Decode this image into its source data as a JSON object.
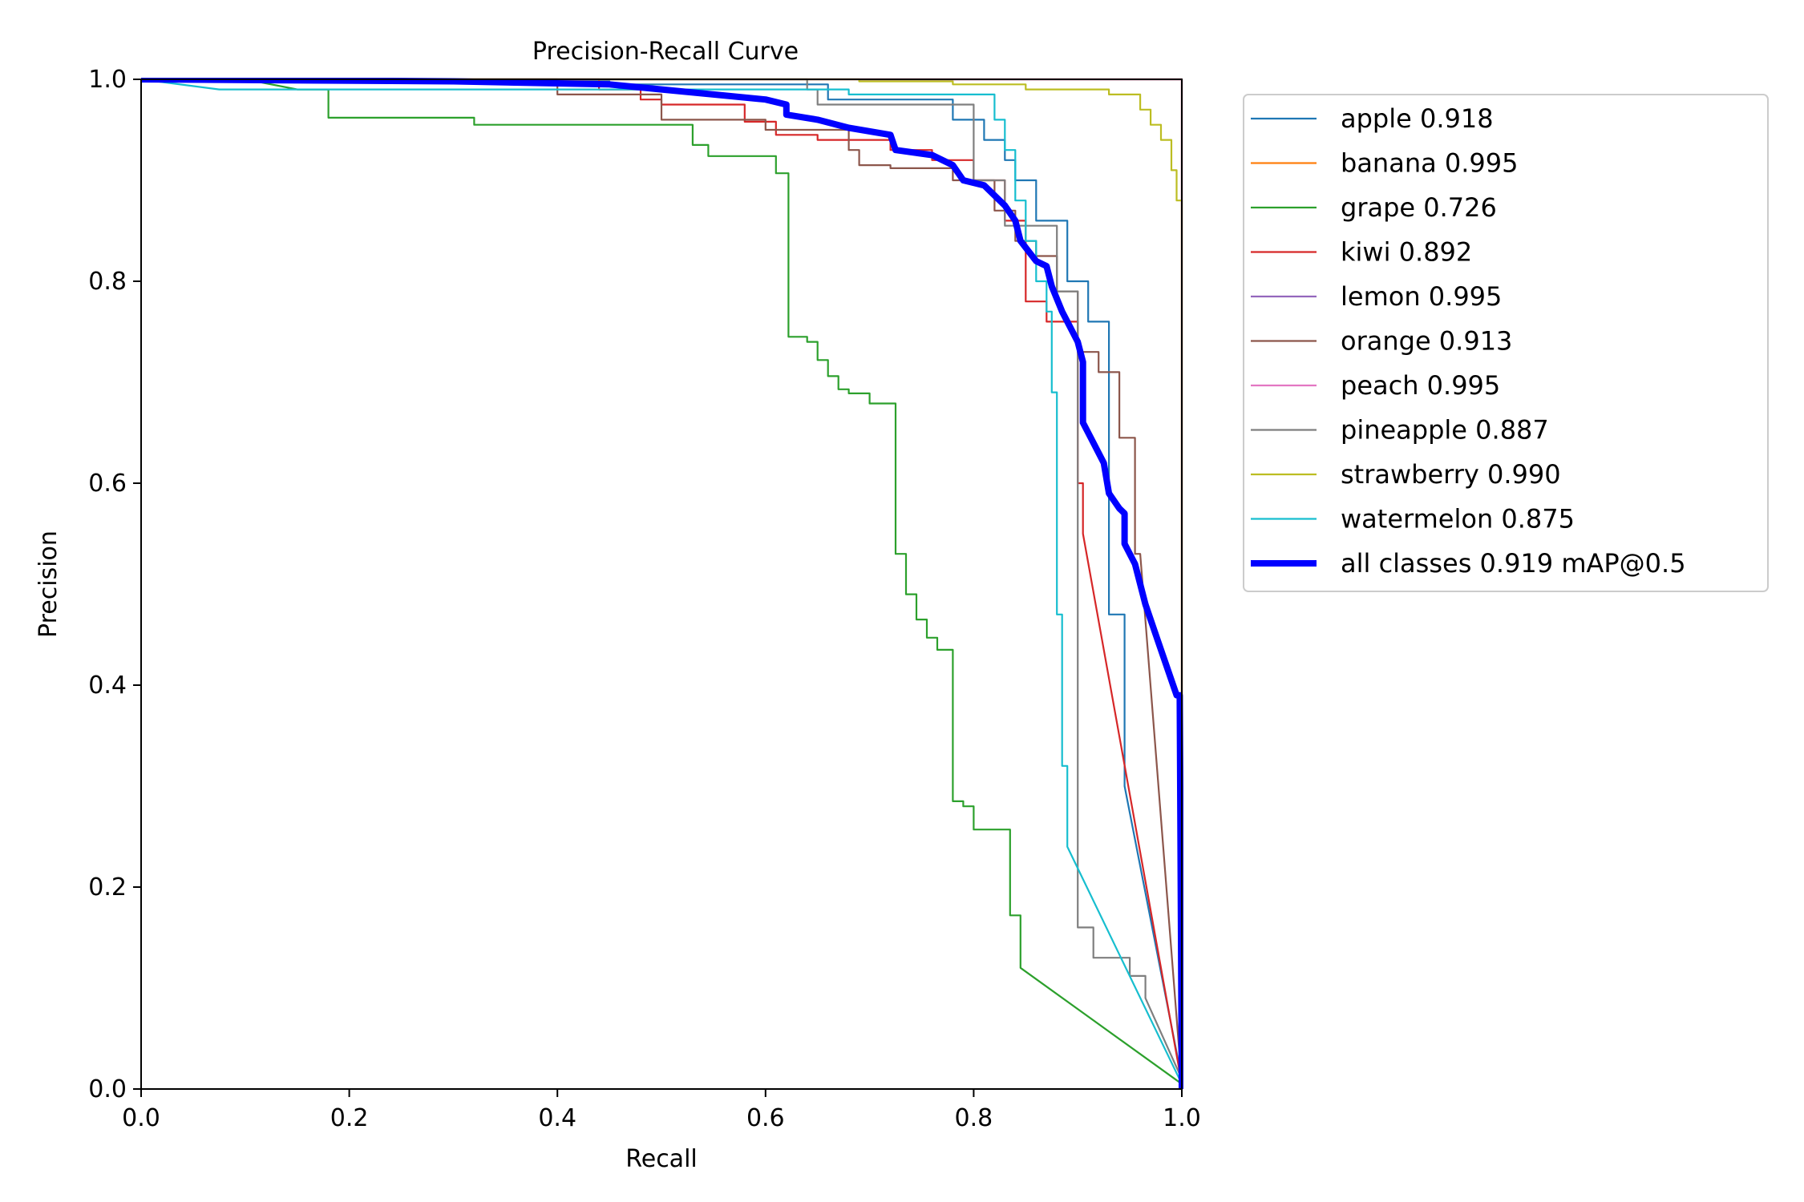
{
  "chart_data": {
    "type": "line",
    "title": "Precision-Recall Curve",
    "xlabel": "Recall",
    "ylabel": "Precision",
    "xlim": [
      0,
      1
    ],
    "ylim": [
      0,
      1
    ],
    "xticks": [
      "0.0",
      "0.2",
      "0.4",
      "0.6",
      "0.8",
      "1.0"
    ],
    "yticks": [
      "0.0",
      "0.2",
      "0.4",
      "0.6",
      "0.8",
      "1.0"
    ],
    "grid": false,
    "legend_position": "outside-top-right",
    "series": [
      {
        "name": "apple 0.918",
        "color": "#1f77b4",
        "width": "thin",
        "points": [
          [
            0,
            1
          ],
          [
            0.3,
            1
          ],
          [
            0.3,
            0.998
          ],
          [
            0.45,
            0.998
          ],
          [
            0.45,
            0.995
          ],
          [
            0.66,
            0.995
          ],
          [
            0.66,
            0.98
          ],
          [
            0.78,
            0.98
          ],
          [
            0.78,
            0.96
          ],
          [
            0.81,
            0.96
          ],
          [
            0.81,
            0.94
          ],
          [
            0.83,
            0.94
          ],
          [
            0.83,
            0.92
          ],
          [
            0.84,
            0.92
          ],
          [
            0.84,
            0.9
          ],
          [
            0.86,
            0.9
          ],
          [
            0.86,
            0.86
          ],
          [
            0.89,
            0.86
          ],
          [
            0.89,
            0.8
          ],
          [
            0.91,
            0.8
          ],
          [
            0.91,
            0.76
          ],
          [
            0.93,
            0.76
          ],
          [
            0.93,
            0.47
          ],
          [
            0.945,
            0.47
          ],
          [
            0.945,
            0.3
          ],
          [
            1,
            0.01
          ]
        ]
      },
      {
        "name": "banana 0.995",
        "color": "#ff7f0e",
        "width": "thin",
        "points": [
          [
            0,
            1
          ],
          [
            0.995,
            1
          ],
          [
            1,
            1
          ],
          [
            1,
            0
          ]
        ]
      },
      {
        "name": "grape 0.726",
        "color": "#2ca02c",
        "width": "thin",
        "points": [
          [
            0,
            1
          ],
          [
            0.1,
            1
          ],
          [
            0.15,
            0.99
          ],
          [
            0.18,
            0.99
          ],
          [
            0.18,
            0.962
          ],
          [
            0.32,
            0.962
          ],
          [
            0.32,
            0.955
          ],
          [
            0.53,
            0.955
          ],
          [
            0.53,
            0.935
          ],
          [
            0.545,
            0.935
          ],
          [
            0.545,
            0.924
          ],
          [
            0.61,
            0.924
          ],
          [
            0.61,
            0.907
          ],
          [
            0.622,
            0.907
          ],
          [
            0.622,
            0.745
          ],
          [
            0.64,
            0.745
          ],
          [
            0.64,
            0.74
          ],
          [
            0.65,
            0.74
          ],
          [
            0.65,
            0.722
          ],
          [
            0.66,
            0.722
          ],
          [
            0.66,
            0.706
          ],
          [
            0.67,
            0.706
          ],
          [
            0.67,
            0.693
          ],
          [
            0.68,
            0.693
          ],
          [
            0.68,
            0.689
          ],
          [
            0.7,
            0.689
          ],
          [
            0.7,
            0.679
          ],
          [
            0.725,
            0.679
          ],
          [
            0.725,
            0.53
          ],
          [
            0.735,
            0.53
          ],
          [
            0.735,
            0.49
          ],
          [
            0.745,
            0.49
          ],
          [
            0.745,
            0.465
          ],
          [
            0.755,
            0.465
          ],
          [
            0.755,
            0.447
          ],
          [
            0.765,
            0.447
          ],
          [
            0.765,
            0.435
          ],
          [
            0.78,
            0.435
          ],
          [
            0.78,
            0.285
          ],
          [
            0.79,
            0.285
          ],
          [
            0.79,
            0.28
          ],
          [
            0.8,
            0.28
          ],
          [
            0.8,
            0.257
          ],
          [
            0.835,
            0.257
          ],
          [
            0.835,
            0.172
          ],
          [
            0.845,
            0.172
          ],
          [
            0.845,
            0.12
          ],
          [
            1,
            0.005
          ]
        ]
      },
      {
        "name": "kiwi 0.892",
        "color": "#d62728",
        "width": "thin",
        "points": [
          [
            0,
            1
          ],
          [
            0.44,
            1
          ],
          [
            0.44,
            0.99
          ],
          [
            0.48,
            0.99
          ],
          [
            0.48,
            0.98
          ],
          [
            0.5,
            0.98
          ],
          [
            0.5,
            0.975
          ],
          [
            0.58,
            0.975
          ],
          [
            0.58,
            0.958
          ],
          [
            0.61,
            0.958
          ],
          [
            0.61,
            0.945
          ],
          [
            0.65,
            0.945
          ],
          [
            0.65,
            0.94
          ],
          [
            0.72,
            0.94
          ],
          [
            0.72,
            0.93
          ],
          [
            0.76,
            0.93
          ],
          [
            0.76,
            0.92
          ],
          [
            0.8,
            0.92
          ],
          [
            0.8,
            0.9
          ],
          [
            0.83,
            0.9
          ],
          [
            0.83,
            0.86
          ],
          [
            0.85,
            0.86
          ],
          [
            0.85,
            0.78
          ],
          [
            0.87,
            0.78
          ],
          [
            0.87,
            0.76
          ],
          [
            0.9,
            0.76
          ],
          [
            0.9,
            0.6
          ],
          [
            0.905,
            0.6
          ],
          [
            0.905,
            0.55
          ],
          [
            1,
            0.005
          ]
        ]
      },
      {
        "name": "lemon 0.995",
        "color": "#9467bd",
        "width": "thin",
        "points": [
          [
            0,
            1
          ],
          [
            0.995,
            1
          ],
          [
            1,
            1
          ],
          [
            1,
            0
          ]
        ]
      },
      {
        "name": "orange 0.913",
        "color": "#8c564b",
        "width": "thin",
        "points": [
          [
            0,
            1
          ],
          [
            0.4,
            1
          ],
          [
            0.4,
            0.985
          ],
          [
            0.5,
            0.985
          ],
          [
            0.5,
            0.96
          ],
          [
            0.6,
            0.96
          ],
          [
            0.6,
            0.95
          ],
          [
            0.68,
            0.95
          ],
          [
            0.68,
            0.93
          ],
          [
            0.69,
            0.93
          ],
          [
            0.69,
            0.915
          ],
          [
            0.72,
            0.915
          ],
          [
            0.72,
            0.912
          ],
          [
            0.78,
            0.912
          ],
          [
            0.78,
            0.9
          ],
          [
            0.82,
            0.9
          ],
          [
            0.82,
            0.87
          ],
          [
            0.84,
            0.87
          ],
          [
            0.84,
            0.84
          ],
          [
            0.86,
            0.84
          ],
          [
            0.86,
            0.825
          ],
          [
            0.88,
            0.825
          ],
          [
            0.88,
            0.79
          ],
          [
            0.9,
            0.79
          ],
          [
            0.9,
            0.73
          ],
          [
            0.92,
            0.73
          ],
          [
            0.92,
            0.71
          ],
          [
            0.94,
            0.71
          ],
          [
            0.94,
            0.645
          ],
          [
            0.955,
            0.645
          ],
          [
            0.955,
            0.53
          ],
          [
            0.96,
            0.53
          ],
          [
            1,
            0.005
          ]
        ]
      },
      {
        "name": "peach 0.995",
        "color": "#e377c2",
        "width": "thin",
        "points": [
          [
            0,
            1
          ],
          [
            0.995,
            1
          ],
          [
            1,
            1
          ],
          [
            1,
            0
          ]
        ]
      },
      {
        "name": "pineapple 0.887",
        "color": "#7f7f7f",
        "width": "thin",
        "points": [
          [
            0,
            1
          ],
          [
            0.64,
            1
          ],
          [
            0.64,
            0.99
          ],
          [
            0.65,
            0.99
          ],
          [
            0.65,
            0.975
          ],
          [
            0.8,
            0.975
          ],
          [
            0.8,
            0.9
          ],
          [
            0.83,
            0.9
          ],
          [
            0.83,
            0.855
          ],
          [
            0.88,
            0.855
          ],
          [
            0.88,
            0.79
          ],
          [
            0.9,
            0.79
          ],
          [
            0.9,
            0.16
          ],
          [
            0.915,
            0.16
          ],
          [
            0.915,
            0.13
          ],
          [
            0.95,
            0.13
          ],
          [
            0.95,
            0.112
          ],
          [
            0.965,
            0.112
          ],
          [
            0.965,
            0.09
          ],
          [
            1,
            0.01
          ]
        ]
      },
      {
        "name": "strawberry 0.990",
        "color": "#bcbd22",
        "width": "thin",
        "points": [
          [
            0,
            1
          ],
          [
            0.69,
            1
          ],
          [
            0.69,
            0.998
          ],
          [
            0.78,
            0.998
          ],
          [
            0.78,
            0.995
          ],
          [
            0.85,
            0.995
          ],
          [
            0.85,
            0.99
          ],
          [
            0.93,
            0.99
          ],
          [
            0.93,
            0.985
          ],
          [
            0.96,
            0.985
          ],
          [
            0.96,
            0.97
          ],
          [
            0.97,
            0.97
          ],
          [
            0.97,
            0.955
          ],
          [
            0.98,
            0.955
          ],
          [
            0.98,
            0.94
          ],
          [
            0.99,
            0.94
          ],
          [
            0.99,
            0.91
          ],
          [
            0.995,
            0.91
          ],
          [
            0.995,
            0.88
          ],
          [
            1,
            0.88
          ],
          [
            1,
            0
          ]
        ]
      },
      {
        "name": "watermelon 0.875",
        "color": "#17becf",
        "width": "thin",
        "points": [
          [
            0,
            1
          ],
          [
            0.075,
            0.99
          ],
          [
            0.68,
            0.99
          ],
          [
            0.68,
            0.985
          ],
          [
            0.82,
            0.985
          ],
          [
            0.82,
            0.96
          ],
          [
            0.83,
            0.96
          ],
          [
            0.83,
            0.93
          ],
          [
            0.84,
            0.93
          ],
          [
            0.84,
            0.88
          ],
          [
            0.85,
            0.88
          ],
          [
            0.85,
            0.84
          ],
          [
            0.86,
            0.84
          ],
          [
            0.86,
            0.8
          ],
          [
            0.87,
            0.8
          ],
          [
            0.87,
            0.77
          ],
          [
            0.875,
            0.77
          ],
          [
            0.875,
            0.69
          ],
          [
            0.88,
            0.69
          ],
          [
            0.88,
            0.47
          ],
          [
            0.885,
            0.47
          ],
          [
            0.885,
            0.32
          ],
          [
            0.89,
            0.32
          ],
          [
            0.89,
            0.24
          ],
          [
            1,
            0.005
          ]
        ]
      },
      {
        "name": "all classes 0.919 mAP@0.5",
        "color": "#0000ff",
        "width": "thick",
        "points": [
          [
            0,
            1
          ],
          [
            0.3,
            0.998
          ],
          [
            0.45,
            0.995
          ],
          [
            0.5,
            0.99
          ],
          [
            0.55,
            0.985
          ],
          [
            0.6,
            0.98
          ],
          [
            0.62,
            0.975
          ],
          [
            0.62,
            0.965
          ],
          [
            0.65,
            0.96
          ],
          [
            0.68,
            0.952
          ],
          [
            0.72,
            0.945
          ],
          [
            0.725,
            0.93
          ],
          [
            0.76,
            0.925
          ],
          [
            0.78,
            0.915
          ],
          [
            0.79,
            0.9
          ],
          [
            0.81,
            0.895
          ],
          [
            0.83,
            0.875
          ],
          [
            0.84,
            0.86
          ],
          [
            0.845,
            0.84
          ],
          [
            0.86,
            0.82
          ],
          [
            0.87,
            0.815
          ],
          [
            0.875,
            0.795
          ],
          [
            0.885,
            0.77
          ],
          [
            0.9,
            0.74
          ],
          [
            0.905,
            0.72
          ],
          [
            0.905,
            0.66
          ],
          [
            0.915,
            0.64
          ],
          [
            0.925,
            0.62
          ],
          [
            0.93,
            0.59
          ],
          [
            0.94,
            0.575
          ],
          [
            0.945,
            0.57
          ],
          [
            0.945,
            0.54
          ],
          [
            0.955,
            0.52
          ],
          [
            0.965,
            0.48
          ],
          [
            0.975,
            0.45
          ],
          [
            0.985,
            0.42
          ],
          [
            0.995,
            0.39
          ],
          [
            0.998,
            0.39
          ],
          [
            1,
            0.0
          ]
        ]
      }
    ]
  }
}
